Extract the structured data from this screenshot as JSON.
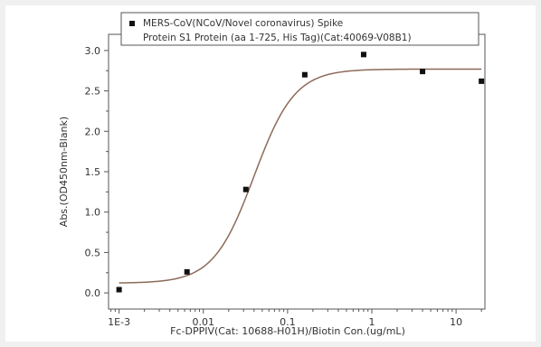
{
  "chart_data": {
    "type": "scatter",
    "xscale": "log",
    "xlim": [
      0.00075,
      22
    ],
    "ylim": [
      -0.2,
      3.2
    ],
    "xticks": [
      0.001,
      0.01,
      0.1,
      1,
      10
    ],
    "xtick_labels": [
      "1E-3",
      "0.01",
      "0.1",
      "1",
      "10"
    ],
    "yticks": [
      0,
      0.5,
      1,
      1.5,
      2,
      2.5,
      3
    ],
    "ytick_labels": [
      "0.0",
      "0.5",
      "1.0",
      "1.5",
      "2.0",
      "2.5",
      "3.0"
    ],
    "xlabel": "Fc-DPPIV(Cat: 10688-H01H)/Biotin Con.(ug/mL)",
    "ylabel": "Abs.(OD450nm-Blank)",
    "grid": false,
    "legend_position": "top",
    "series": [
      {
        "name_lines": [
          "MERS-CoV(NCoV/Novel coronavirus) Spike",
          "Protein S1 Protein (aa 1-725, His Tag)(Cat:40069-V08B1)"
        ],
        "marker": "square",
        "color": "#111111",
        "x": [
          0.001,
          0.0064,
          0.032,
          0.16,
          0.8,
          4,
          20
        ],
        "y": [
          0.04,
          0.26,
          1.28,
          2.7,
          2.95,
          2.74,
          2.62
        ]
      }
    ],
    "fit_curve": {
      "color": "#8c6a5a",
      "bottom": 0.12,
      "top": 2.77,
      "ec50": 0.04,
      "hill": 1.8
    }
  }
}
